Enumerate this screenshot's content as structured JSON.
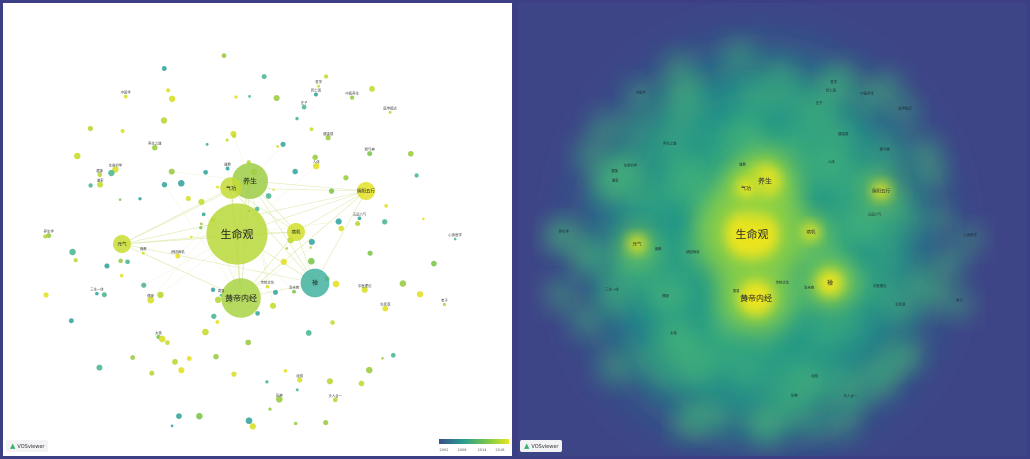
{
  "colors": {
    "frame": "#3d3f84",
    "network_bg": "#ffffff",
    "heat_bg": "#3e4587",
    "legend_gradient": [
      "#3b4f8c",
      "#2a9d8f",
      "#7ac94a",
      "#e8e420"
    ]
  },
  "brand": {
    "label": "VOSviewer",
    "icon": "vosviewer-logo-icon"
  },
  "legend": {
    "ticks": [
      "2002",
      "2006",
      "2014",
      "2018"
    ]
  },
  "main_nodes": [
    {
      "label": "生命观"
    },
    {
      "label": "黄帝内经"
    },
    {
      "label": "养生"
    },
    {
      "label": "气功"
    },
    {
      "label": "禅"
    },
    {
      "label": "病机"
    },
    {
      "label": "元气"
    },
    {
      "label": "阴阳五行"
    }
  ],
  "minor_labels": [
    "中医学",
    "三生一体",
    "中医理论",
    "养生之道",
    "道教",
    "病因病机",
    "生命科学",
    "中医养生",
    "气血",
    "天人合一",
    "佛教",
    "传统文化",
    "老子",
    "周易",
    "庄子",
    "精气神",
    "心身医学",
    "健康观",
    "太极",
    "经络",
    "五运六气",
    "治未病",
    "藏象",
    "哲学",
    "人体",
    "死亡观",
    "生死观",
    "形神",
    "道家",
    "儒家",
    "医学模式",
    "养生学"
  ]
}
